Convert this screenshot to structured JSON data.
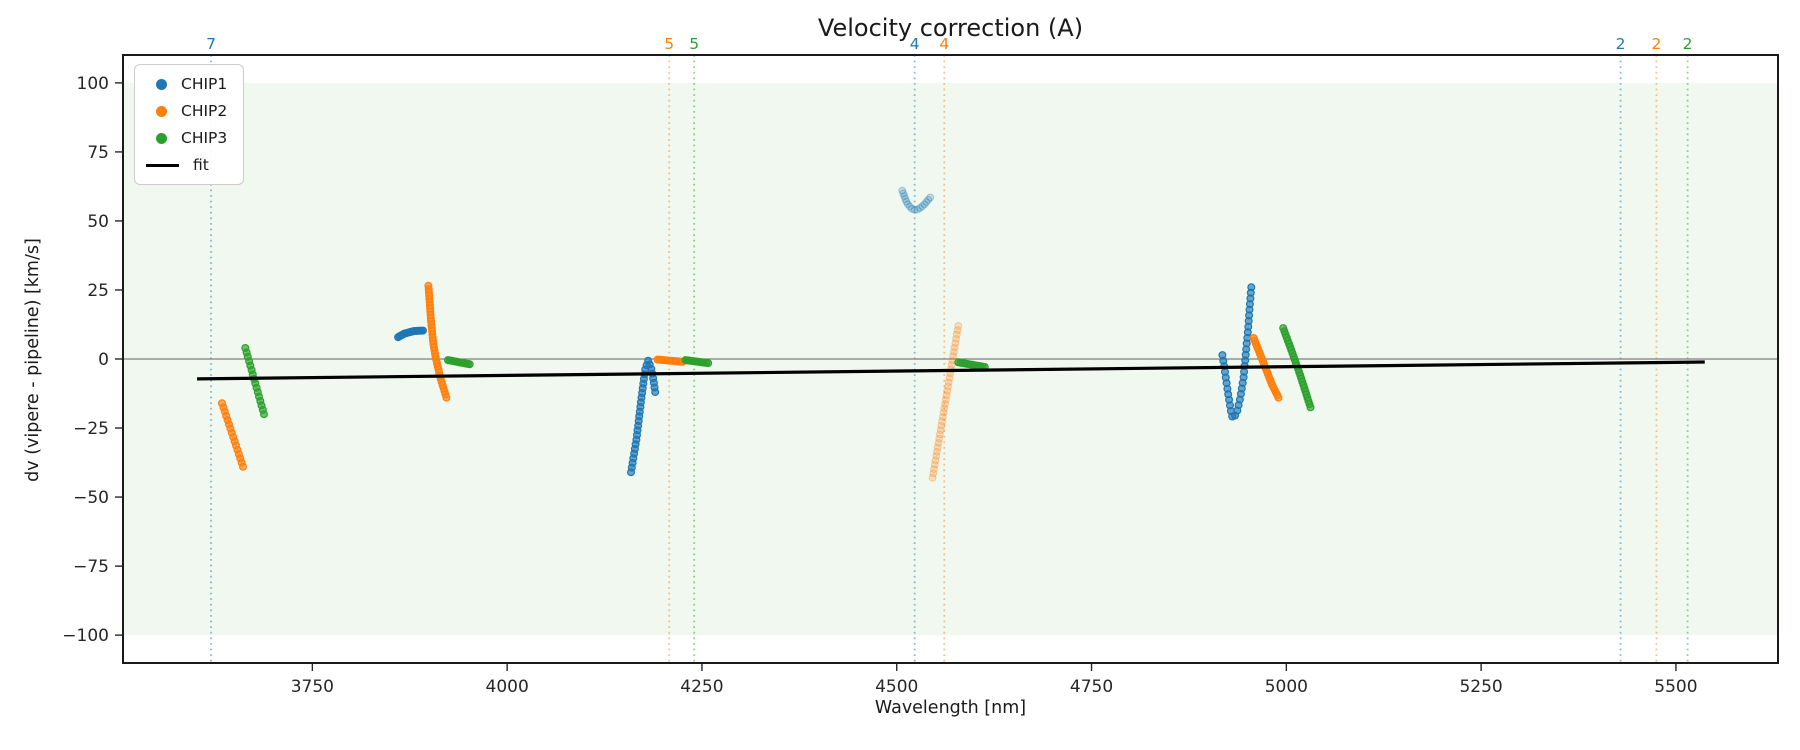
{
  "chart_data": {
    "type": "scatter",
    "title": "Velocity correction (A)",
    "xlabel": "Wavelength [nm]",
    "ylabel": "dv (vipere - pipeline) [km/s]",
    "xlim": [
      3507,
      5631
    ],
    "ylim": [
      -110.1,
      110.1
    ],
    "xticks": [
      3750,
      4000,
      4250,
      4500,
      4750,
      5000,
      5250,
      5500
    ],
    "yticks": [
      100,
      75,
      50,
      25,
      0,
      -25,
      -50,
      -75,
      -100
    ],
    "grid": false,
    "legend_position": "upper left",
    "background_band": {
      "y_min": -100,
      "y_max": 100,
      "color": "#2ca02c",
      "opacity": 0.07
    },
    "zero_line": {
      "y": 0,
      "color": "#7f7f7f"
    },
    "fit": {
      "label": "fit",
      "color": "#000000",
      "x": [
        3602,
        5537
      ],
      "y": [
        -7.2,
        -1.1
      ]
    },
    "order_markers": [
      {
        "label": "7",
        "x": 3620,
        "color": "#1f77b4"
      },
      {
        "label": "5",
        "x": 4208,
        "color": "#ff7f0e"
      },
      {
        "label": "5",
        "x": 4240,
        "color": "#2ca02c"
      },
      {
        "label": "4",
        "x": 4523,
        "color": "#1f77b4"
      },
      {
        "label": "4",
        "x": 4561,
        "color": "#ff7f0e"
      },
      {
        "label": "2",
        "x": 5429,
        "color": "#1f77b4"
      },
      {
        "label": "2",
        "x": 5475,
        "color": "#ff7f0e"
      },
      {
        "label": "2",
        "x": 5515,
        "color": "#2ca02c"
      }
    ],
    "series": [
      {
        "name": "CHIP1",
        "color": "#1f77b4",
        "clusters": [
          {
            "alpha": 1,
            "n": 18,
            "path": [
              [
                3860,
                7.9
              ],
              [
                3868,
                9.2
              ],
              [
                3880,
                10.1
              ],
              [
                3892,
                10.3
              ]
            ]
          },
          {
            "alpha": 1,
            "n": 32,
            "path": [
              [
                4159,
                -41
              ],
              [
                4166,
                -29
              ],
              [
                4172,
                -15
              ],
              [
                4177,
                -4
              ],
              [
                4181,
                -0.5
              ],
              [
                4185,
                -3.5
              ],
              [
                4188,
                -8
              ],
              [
                4190,
                -12
              ]
            ]
          },
          {
            "alpha": 0.3,
            "n": 16,
            "path": [
              [
                4507,
                61
              ],
              [
                4513,
                56.5
              ],
              [
                4520,
                54.2
              ],
              [
                4526,
                54
              ],
              [
                4534,
                55.5
              ],
              [
                4543,
                58.5
              ]
            ]
          },
          {
            "alpha": 1,
            "n": 36,
            "path": [
              [
                4918,
                1.4
              ],
              [
                4921,
                -4
              ],
              [
                4925,
                -12
              ],
              [
                4929,
                -19
              ],
              [
                4931,
                -21.5
              ],
              [
                4936,
                -20
              ],
              [
                4941,
                -14
              ],
              [
                4945,
                -7
              ],
              [
                4948,
                2
              ],
              [
                4951,
                11
              ],
              [
                4953,
                19
              ],
              [
                4955,
                26
              ]
            ]
          }
        ]
      },
      {
        "name": "CHIP2",
        "color": "#ff7f0e",
        "clusters": [
          {
            "alpha": 1,
            "n": 16,
            "path": [
              [
                3634,
                -16
              ],
              [
                3661,
                -39
              ]
            ]
          },
          {
            "alpha": 1,
            "n": 36,
            "path": [
              [
                3899,
                26.5
              ],
              [
                3902,
                15
              ],
              [
                3905,
                6
              ],
              [
                3908,
                1
              ],
              [
                3914,
                -6.5
              ],
              [
                3922,
                -14
              ]
            ]
          },
          {
            "alpha": 1,
            "n": 14,
            "path": [
              [
                4193,
                -0.2
              ],
              [
                4225,
                -1
              ]
            ]
          },
          {
            "alpha": 0.3,
            "n": 36,
            "path": [
              [
                4546,
                -43
              ],
              [
                4579,
                12
              ]
            ]
          },
          {
            "alpha": 1,
            "n": 24,
            "path": [
              [
                4958,
                7.6
              ],
              [
                4966,
                2
              ],
              [
                4975,
                -4.5
              ],
              [
                4982,
                -9.5
              ],
              [
                4990,
                -14
              ]
            ]
          }
        ]
      },
      {
        "name": "CHIP3",
        "color": "#2ca02c",
        "clusters": [
          {
            "alpha": 1,
            "n": 16,
            "path": [
              [
                3664,
                4
              ],
              [
                3688,
                -20
              ]
            ]
          },
          {
            "alpha": 1,
            "n": 13,
            "path": [
              [
                3924,
                -0.4
              ],
              [
                3952,
                -1.9
              ]
            ]
          },
          {
            "alpha": 1,
            "n": 13,
            "path": [
              [
                4229,
                -0.4
              ],
              [
                4258,
                -1.5
              ]
            ]
          },
          {
            "alpha": 1,
            "n": 14,
            "path": [
              [
                4579,
                -1.2
              ],
              [
                4613,
                -2.9
              ]
            ]
          },
          {
            "alpha": 1,
            "n": 26,
            "path": [
              [
                4996,
                11.2
              ],
              [
                5008,
                2
              ],
              [
                5018,
                -6
              ],
              [
                5031,
                -17.5
              ]
            ]
          }
        ]
      }
    ]
  }
}
